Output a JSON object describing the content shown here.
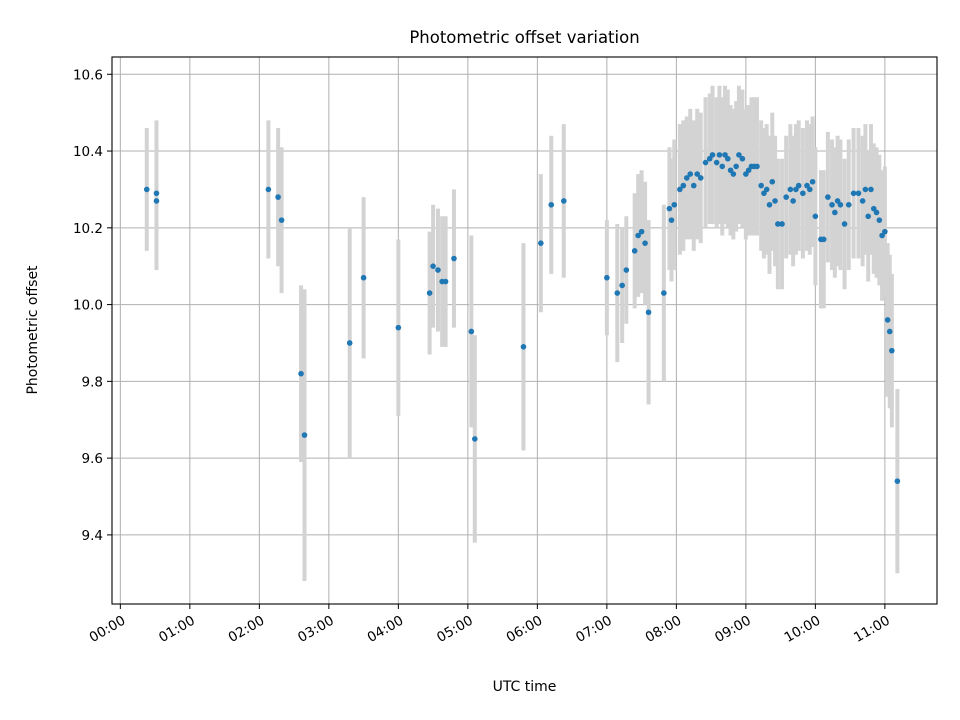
{
  "chart_data": {
    "type": "scatter",
    "title": "Photometric offset variation",
    "xlabel": "UTC time",
    "ylabel": "Photometric offset",
    "x_unit": "hours UTC",
    "xlim": [
      -0.12,
      11.75
    ],
    "ylim": [
      9.22,
      10.645
    ],
    "x_ticks": [
      0,
      1,
      2,
      3,
      4,
      5,
      6,
      7,
      8,
      9,
      10,
      11
    ],
    "x_tick_labels": [
      "00:00",
      "01:00",
      "02:00",
      "03:00",
      "04:00",
      "05:00",
      "06:00",
      "07:00",
      "08:00",
      "09:00",
      "10:00",
      "11:00"
    ],
    "y_ticks": [
      9.4,
      9.6,
      9.8,
      10.0,
      10.2,
      10.4,
      10.6
    ],
    "y_tick_labels": [
      "9.4",
      "9.6",
      "9.8",
      "10.0",
      "10.2",
      "10.4",
      "10.6"
    ],
    "grid": true,
    "colors": {
      "points": "#1f77b4",
      "errorbars": "#d3d3d3",
      "grid": "#b0b0b0"
    },
    "points": [
      [
        0.38,
        10.3,
        0.16
      ],
      [
        0.52,
        10.29,
        0.19
      ],
      [
        0.52,
        10.27,
        0.18
      ],
      [
        2.13,
        10.3,
        0.18
      ],
      [
        2.27,
        10.28,
        0.18
      ],
      [
        2.32,
        10.22,
        0.19
      ],
      [
        2.6,
        9.82,
        0.23
      ],
      [
        2.65,
        9.66,
        0.38
      ],
      [
        3.3,
        9.9,
        0.3
      ],
      [
        3.5,
        10.07,
        0.21
      ],
      [
        4.0,
        9.94,
        0.23
      ],
      [
        4.45,
        10.03,
        0.16
      ],
      [
        4.5,
        10.1,
        0.16
      ],
      [
        4.57,
        10.09,
        0.16
      ],
      [
        4.63,
        10.06,
        0.17
      ],
      [
        4.68,
        10.06,
        0.17
      ],
      [
        4.8,
        10.12,
        0.18
      ],
      [
        5.05,
        9.93,
        0.25
      ],
      [
        5.1,
        9.65,
        0.27
      ],
      [
        5.8,
        9.89,
        0.27
      ],
      [
        6.05,
        10.16,
        0.18
      ],
      [
        6.2,
        10.26,
        0.18
      ],
      [
        6.38,
        10.27,
        0.2
      ],
      [
        7.0,
        10.07,
        0.15
      ],
      [
        7.15,
        10.03,
        0.18
      ],
      [
        7.22,
        10.05,
        0.15
      ],
      [
        7.28,
        10.09,
        0.14
      ],
      [
        7.4,
        10.14,
        0.15
      ],
      [
        7.45,
        10.18,
        0.16
      ],
      [
        7.5,
        10.19,
        0.16
      ],
      [
        7.55,
        10.16,
        0.16
      ],
      [
        7.6,
        9.98,
        0.24
      ],
      [
        7.82,
        10.03,
        0.23
      ],
      [
        7.93,
        10.22,
        0.16
      ],
      [
        7.9,
        10.25,
        0.16
      ],
      [
        7.97,
        10.26,
        0.17
      ],
      [
        8.05,
        10.3,
        0.17
      ],
      [
        8.1,
        10.31,
        0.17
      ],
      [
        8.15,
        10.33,
        0.16
      ],
      [
        8.2,
        10.34,
        0.17
      ],
      [
        8.25,
        10.31,
        0.17
      ],
      [
        8.3,
        10.34,
        0.17
      ],
      [
        8.35,
        10.33,
        0.17
      ],
      [
        8.42,
        10.37,
        0.17
      ],
      [
        8.48,
        10.38,
        0.17
      ],
      [
        8.52,
        10.39,
        0.18
      ],
      [
        8.58,
        10.37,
        0.17
      ],
      [
        8.62,
        10.39,
        0.18
      ],
      [
        8.66,
        10.36,
        0.18
      ],
      [
        8.7,
        10.39,
        0.18
      ],
      [
        8.74,
        10.38,
        0.18
      ],
      [
        8.78,
        10.35,
        0.17
      ],
      [
        8.82,
        10.34,
        0.17
      ],
      [
        8.86,
        10.36,
        0.17
      ],
      [
        8.9,
        10.39,
        0.18
      ],
      [
        8.95,
        10.38,
        0.18
      ],
      [
        9.0,
        10.34,
        0.17
      ],
      [
        9.04,
        10.35,
        0.17
      ],
      [
        9.08,
        10.36,
        0.18
      ],
      [
        9.12,
        10.36,
        0.18
      ],
      [
        9.16,
        10.36,
        0.18
      ],
      [
        9.22,
        10.31,
        0.17
      ],
      [
        9.26,
        10.29,
        0.17
      ],
      [
        9.3,
        10.3,
        0.17
      ],
      [
        9.34,
        10.26,
        0.18
      ],
      [
        9.38,
        10.32,
        0.18
      ],
      [
        9.42,
        10.27,
        0.17
      ],
      [
        9.46,
        10.21,
        0.17
      ],
      [
        9.52,
        10.21,
        0.17
      ],
      [
        9.58,
        10.28,
        0.16
      ],
      [
        9.64,
        10.3,
        0.17
      ],
      [
        9.68,
        10.27,
        0.17
      ],
      [
        9.72,
        10.3,
        0.17
      ],
      [
        9.76,
        10.31,
        0.17
      ],
      [
        9.82,
        10.29,
        0.17
      ],
      [
        9.88,
        10.31,
        0.17
      ],
      [
        9.92,
        10.3,
        0.17
      ],
      [
        9.96,
        10.32,
        0.17
      ],
      [
        10.0,
        10.23,
        0.18
      ],
      [
        10.08,
        10.17,
        0.18
      ],
      [
        10.12,
        10.17,
        0.18
      ],
      [
        10.18,
        10.28,
        0.17
      ],
      [
        10.24,
        10.26,
        0.17
      ],
      [
        10.28,
        10.24,
        0.17
      ],
      [
        10.32,
        10.27,
        0.17
      ],
      [
        10.36,
        10.26,
        0.17
      ],
      [
        10.42,
        10.21,
        0.17
      ],
      [
        10.48,
        10.26,
        0.17
      ],
      [
        10.55,
        10.29,
        0.17
      ],
      [
        10.62,
        10.29,
        0.17
      ],
      [
        10.68,
        10.27,
        0.17
      ],
      [
        10.72,
        10.3,
        0.17
      ],
      [
        10.76,
        10.23,
        0.17
      ],
      [
        10.8,
        10.3,
        0.17
      ],
      [
        10.84,
        10.25,
        0.17
      ],
      [
        10.88,
        10.24,
        0.17
      ],
      [
        10.92,
        10.22,
        0.17
      ],
      [
        10.96,
        10.18,
        0.17
      ],
      [
        11.0,
        10.19,
        0.17
      ],
      [
        11.04,
        9.96,
        0.2
      ],
      [
        11.07,
        9.93,
        0.2
      ],
      [
        11.1,
        9.88,
        0.2
      ],
      [
        11.18,
        9.54,
        0.24
      ]
    ]
  }
}
